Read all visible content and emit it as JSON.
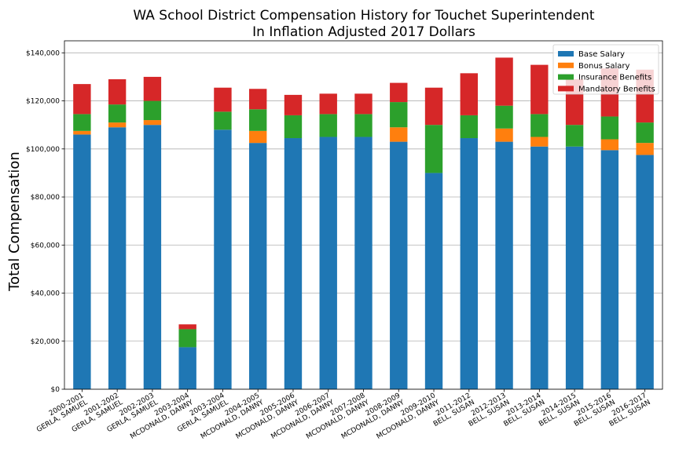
{
  "chart_data": {
    "type": "bar",
    "stacked": true,
    "title": "WA School District Compensation History for Touchet Superintendent",
    "subtitle": "In Inflation Adjusted 2017 Dollars",
    "xlabel": "",
    "ylabel": "Total Compensation",
    "ylim": [
      0,
      145000
    ],
    "yticks": [
      0,
      20000,
      40000,
      60000,
      80000,
      100000,
      120000,
      140000
    ],
    "ytick_labels": [
      "$0",
      "$20,000",
      "$40,000",
      "$60,000",
      "$80,000",
      "$100,000",
      "$120,000",
      "$140,000"
    ],
    "grid": "horizontal",
    "legend_position": "top-right",
    "categories": [
      [
        "2000-2001",
        "GERLA, SAMUEL"
      ],
      [
        "2001-2002",
        "GERLA, SAMUEL"
      ],
      [
        "2002-2003",
        "GERLA, SAMUEL"
      ],
      [
        "2003-2004",
        "MCDONALD, DANNY"
      ],
      [
        "2003-2004",
        "GERLA, SAMUEL"
      ],
      [
        "2004-2005",
        "MCDONALD, DANNY"
      ],
      [
        "2005-2006",
        "MCDONALD, DANNY"
      ],
      [
        "2006-2007",
        "MCDONALD, DANNY"
      ],
      [
        "2007-2008",
        "MCDONALD, DANNY"
      ],
      [
        "2008-2009",
        "MCDONALD, DANNY"
      ],
      [
        "2009-2010",
        "MCDONALD, DANNY"
      ],
      [
        "2011-2012",
        "BELL, SUSAN"
      ],
      [
        "2012-2013",
        "BELL, SUSAN"
      ],
      [
        "2013-2014",
        "BELL, SUSAN"
      ],
      [
        "2014-2015",
        "BELL, SUSAN"
      ],
      [
        "2015-2016",
        "BELL, SUSAN"
      ],
      [
        "2016-2017",
        "BELL, SUSAN"
      ]
    ],
    "series": [
      {
        "name": "Base Salary",
        "color": "#1f77b4",
        "values": [
          106000,
          109000,
          110000,
          17500,
          108000,
          102500,
          104500,
          105000,
          105000,
          103000,
          90000,
          104500,
          103000,
          101000,
          101000,
          99500,
          97500
        ]
      },
      {
        "name": "Bonus Salary",
        "color": "#ff7f0e",
        "values": [
          1500,
          2000,
          2000,
          0,
          0,
          5000,
          0,
          0,
          0,
          6000,
          0,
          0,
          5500,
          4000,
          0,
          4500,
          5000
        ]
      },
      {
        "name": "Insurance Benefits",
        "color": "#2ca02c",
        "values": [
          7000,
          7500,
          8000,
          7500,
          7500,
          9000,
          9500,
          9500,
          9500,
          10500,
          20000,
          9500,
          9500,
          9500,
          9000,
          9500,
          8500
        ]
      },
      {
        "name": "Mandatory Benefits",
        "color": "#d62728",
        "values": [
          12500,
          10500,
          10000,
          2000,
          10000,
          8500,
          8500,
          8500,
          8500,
          8000,
          15500,
          17500,
          20000,
          20500,
          19000,
          20000,
          22000
        ]
      }
    ]
  }
}
